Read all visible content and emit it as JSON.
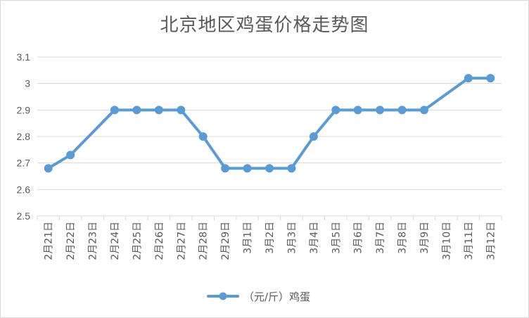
{
  "chart_data": {
    "type": "line",
    "title": "北京地区鸡蛋价格走势图",
    "categories": [
      "2月21日",
      "2月22日",
      "2月23日",
      "2月24日",
      "2月25日",
      "2月26日",
      "2月27日",
      "2月28日",
      "2月29日",
      "3月1日",
      "3月2日",
      "3月3日",
      "3月4日",
      "3月5日",
      "3月6日",
      "3月7日",
      "3月8日",
      "3月9日",
      "3月10日",
      "3月11日",
      "3月12日"
    ],
    "series": [
      {
        "name": "（元/斤）鸡蛋",
        "color": "#5b9bd5",
        "values": [
          2.68,
          2.73,
          null,
          2.9,
          2.9,
          2.9,
          2.9,
          2.8,
          2.68,
          2.68,
          2.68,
          2.68,
          2.8,
          2.9,
          2.9,
          2.9,
          2.9,
          2.9,
          null,
          3.02,
          3.02
        ]
      }
    ],
    "ylim": [
      2.5,
      3.1
    ],
    "yticks": [
      "2.5",
      "2.6",
      "2.7",
      "2.8",
      "2.9",
      "3",
      "3.1"
    ],
    "grid": true,
    "legend_position": "bottom",
    "gap_mode": "span"
  }
}
